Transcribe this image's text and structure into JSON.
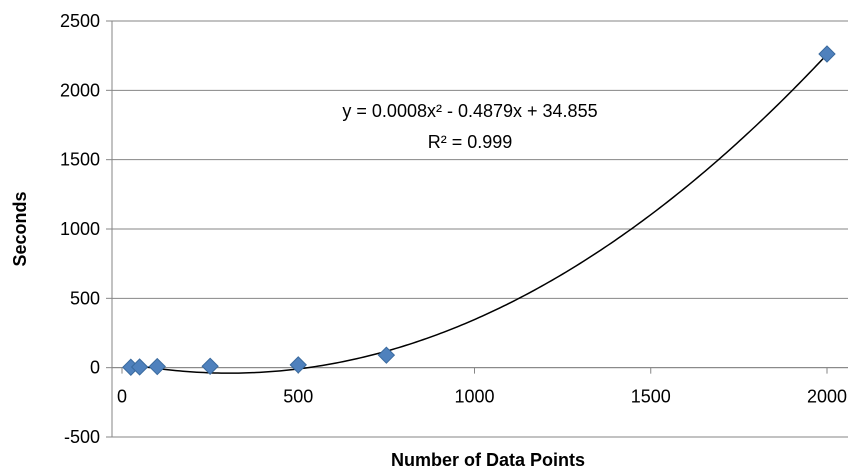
{
  "chart_data": {
    "type": "scatter",
    "title": "",
    "xlabel": "Number of Data Points",
    "ylabel": "Seconds",
    "xlim": [
      0,
      2000
    ],
    "ylim": [
      -500,
      2500
    ],
    "x_ticks": [
      0,
      500,
      1000,
      1500,
      2000
    ],
    "y_ticks": [
      -500,
      0,
      500,
      1000,
      1500,
      2000,
      2500
    ],
    "x_tick_labels": [
      "0",
      "500",
      "1000",
      "1500",
      "2000"
    ],
    "y_tick_labels": [
      "-500",
      "0",
      "500",
      "1000",
      "1500",
      "2000",
      "2500"
    ],
    "grid": "horizontal",
    "legend": "none",
    "marker": "diamond",
    "marker_color": "#4F81BD",
    "trendline_color": "#000000",
    "series": [
      {
        "x": [
          25,
          50,
          100,
          250,
          500,
          750,
          2000
        ],
        "y": [
          3,
          5,
          8,
          10,
          20,
          90,
          2262
        ]
      }
    ],
    "trendline": {
      "type": "polynomial",
      "coefficients": [
        0.0008,
        -0.4879,
        34.855
      ],
      "x_range": [
        25,
        2000
      ]
    },
    "annotations": [
      "y = 0.0008x² - 0.4879x + 34.855",
      "R² = 0.999"
    ]
  }
}
